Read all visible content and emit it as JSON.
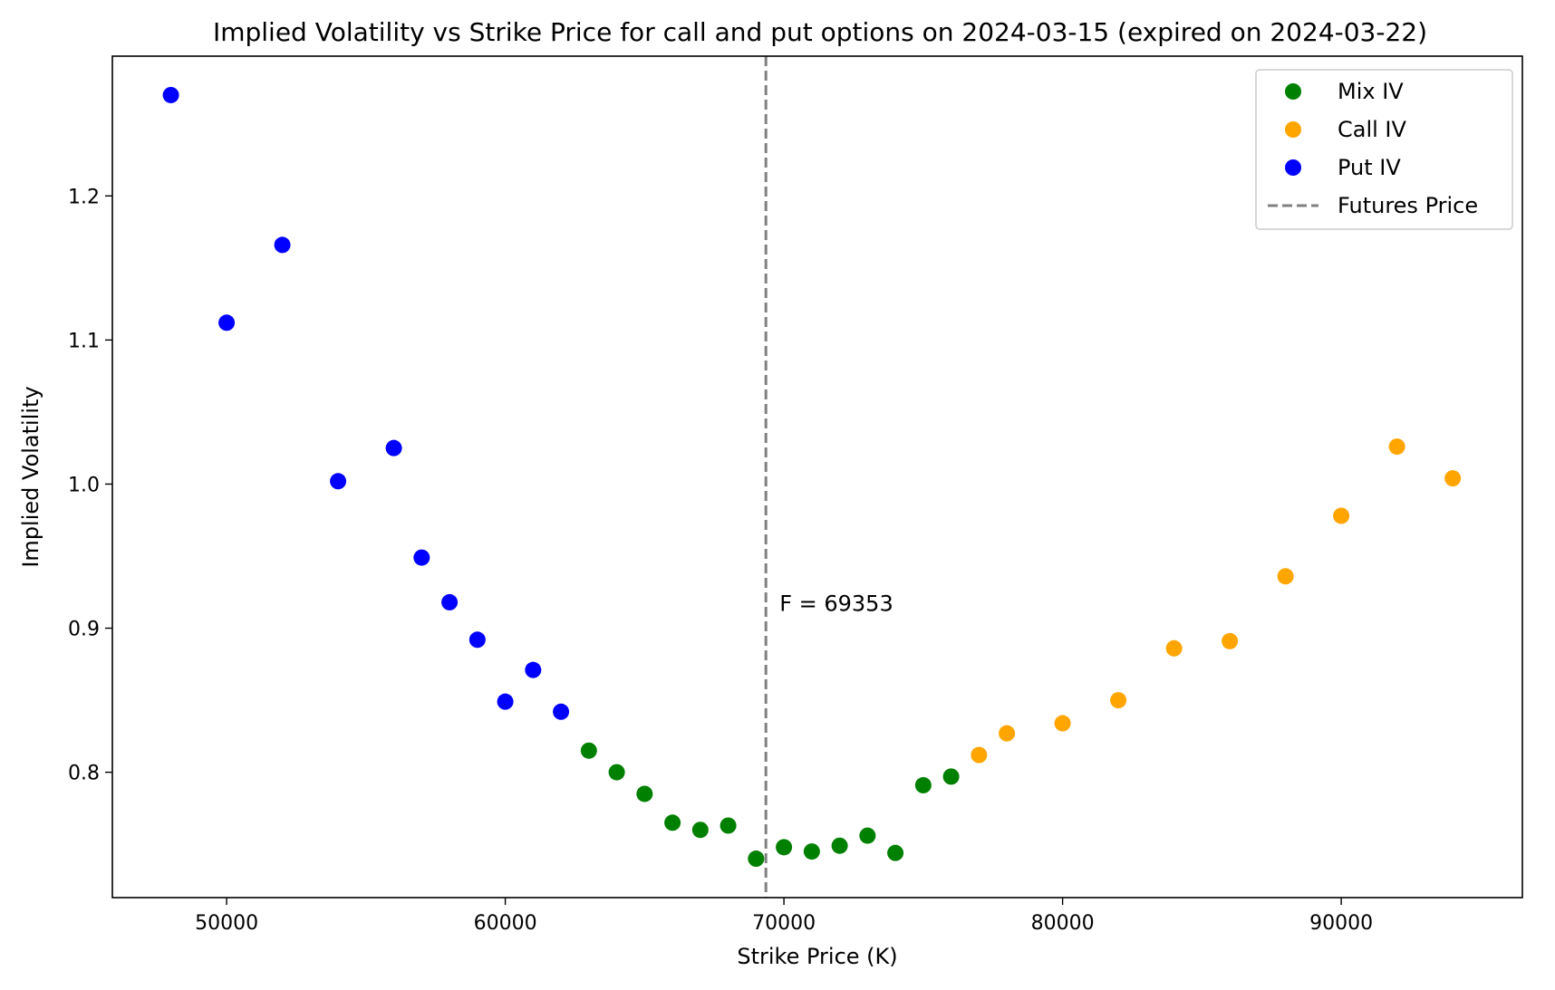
{
  "chart_data": {
    "type": "scatter",
    "title": "Implied Volatility vs Strike Price for call and put options on 2024-03-15 (expired on 2024-03-22)",
    "xlabel": "Strike Price (K)",
    "ylabel": "Implied Volatility",
    "xlim": [
      45900,
      96500
    ],
    "ylim": [
      0.713,
      1.297
    ],
    "xticks": [
      50000,
      60000,
      70000,
      80000,
      90000
    ],
    "xtick_labels": [
      "50000",
      "60000",
      "70000",
      "80000",
      "90000"
    ],
    "yticks": [
      0.8,
      0.9,
      1.0,
      1.1,
      1.2
    ],
    "ytick_labels": [
      "0.8",
      "0.9",
      "1.0",
      "1.1",
      "1.2"
    ],
    "grid": false,
    "legend_position": "top-right",
    "series": [
      {
        "name": "Mix IV",
        "color": "#008000",
        "points": [
          {
            "x": 63000,
            "y": 0.815
          },
          {
            "x": 64000,
            "y": 0.8
          },
          {
            "x": 65000,
            "y": 0.785
          },
          {
            "x": 66000,
            "y": 0.765
          },
          {
            "x": 67000,
            "y": 0.76
          },
          {
            "x": 68000,
            "y": 0.763
          },
          {
            "x": 69000,
            "y": 0.74
          },
          {
            "x": 70000,
            "y": 0.748
          },
          {
            "x": 71000,
            "y": 0.745
          },
          {
            "x": 72000,
            "y": 0.749
          },
          {
            "x": 73000,
            "y": 0.756
          },
          {
            "x": 74000,
            "y": 0.744
          },
          {
            "x": 75000,
            "y": 0.791
          },
          {
            "x": 76000,
            "y": 0.797
          }
        ]
      },
      {
        "name": "Call IV",
        "color": "#FFA500",
        "points": [
          {
            "x": 77000,
            "y": 0.812
          },
          {
            "x": 78000,
            "y": 0.827
          },
          {
            "x": 80000,
            "y": 0.834
          },
          {
            "x": 82000,
            "y": 0.85
          },
          {
            "x": 84000,
            "y": 0.886
          },
          {
            "x": 86000,
            "y": 0.891
          },
          {
            "x": 88000,
            "y": 0.936
          },
          {
            "x": 90000,
            "y": 0.978
          },
          {
            "x": 92000,
            "y": 1.026
          },
          {
            "x": 94000,
            "y": 1.004
          }
        ]
      },
      {
        "name": "Put IV",
        "color": "#0000FF",
        "points": [
          {
            "x": 48000,
            "y": 1.27
          },
          {
            "x": 50000,
            "y": 1.112
          },
          {
            "x": 52000,
            "y": 1.166
          },
          {
            "x": 54000,
            "y": 1.002
          },
          {
            "x": 56000,
            "y": 1.025
          },
          {
            "x": 57000,
            "y": 0.949
          },
          {
            "x": 58000,
            "y": 0.918
          },
          {
            "x": 59000,
            "y": 0.892
          },
          {
            "x": 60000,
            "y": 0.849
          },
          {
            "x": 61000,
            "y": 0.871
          },
          {
            "x": 62000,
            "y": 0.842
          }
        ]
      }
    ],
    "vline": {
      "name": "Futures Price",
      "x": 69353,
      "color": "#808080",
      "style": "dashed",
      "annotation": "F = 69353"
    }
  }
}
